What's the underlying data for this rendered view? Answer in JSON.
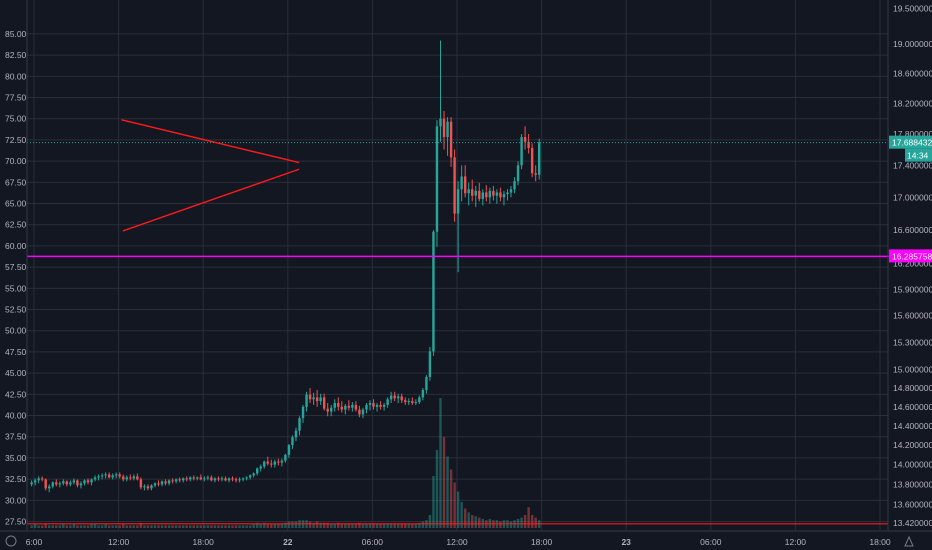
{
  "chart_data": {
    "type": "candlestick",
    "title": "",
    "colors": {
      "background": "#131722",
      "grid": "#2a2e39",
      "up": "#26a69a",
      "down": "#ef5350",
      "text": "#b2b5be",
      "pattern_line": "#ff1a1a",
      "horizontal_line": "#ff00ff",
      "current_price_label_bg": "#26a69a"
    },
    "left_axis": {
      "label": "",
      "range": [
        26.5,
        89.0
      ],
      "ticks": [
        "85.00",
        "82.50",
        "80.00",
        "77.50",
        "75.00",
        "72.50",
        "70.00",
        "67.50",
        "65.00",
        "62.50",
        "60.00",
        "57.50",
        "55.00",
        "52.50",
        "50.00",
        "47.50",
        "45.00",
        "42.50",
        "40.00",
        "37.50",
        "35.00",
        "32.50",
        "30.00",
        "27.50"
      ]
    },
    "right_axis": {
      "label": "",
      "scale": "log",
      "range": [
        13.35,
        19.62
      ],
      "ticks": [
        "19.500000",
        "19.000000",
        "18.600000",
        "18.200000",
        "17.800000",
        "17.400000",
        "17.000000",
        "16.600000",
        "16.200000",
        "15.900000",
        "15.600000",
        "15.300000",
        "15.000000",
        "14.800000",
        "14.600000",
        "14.400000",
        "14.200000",
        "14.000000",
        "13.800000",
        "13.600000",
        "13.420000"
      ]
    },
    "x_axis": {
      "label": "",
      "ticks": [
        "6:00",
        "12:00",
        "18:00",
        "22",
        "06:00",
        "12:00",
        "18:00",
        "23",
        "06:00",
        "12:00",
        "18:00"
      ]
    },
    "price_labels": {
      "current_price": "17.688432",
      "countdown": "14:34",
      "horizontal_line_price": "16.285758"
    },
    "annotations": {
      "horizontal_line_level": 16.285758,
      "triangle": {
        "upper_start": [
          12.2,
          17.985
        ],
        "upper_end": [
          24.8,
          17.434
        ],
        "lower_start": [
          12.3,
          16.59
        ],
        "lower_end": [
          24.8,
          17.35
        ]
      }
    },
    "series": [
      {
        "x_start": 5.83,
        "x_step": 0.25,
        "candles": [
          [
            13.8,
            13.84,
            13.78,
            13.82
          ],
          [
            13.82,
            13.86,
            13.79,
            13.84
          ],
          [
            13.84,
            13.88,
            13.81,
            13.86
          ],
          [
            13.86,
            13.88,
            13.83,
            13.85
          ],
          [
            13.85,
            13.86,
            13.74,
            13.76
          ],
          [
            13.76,
            13.8,
            13.72,
            13.78
          ],
          [
            13.78,
            13.83,
            13.76,
            13.82
          ],
          [
            13.82,
            13.85,
            13.78,
            13.8
          ],
          [
            13.8,
            13.83,
            13.77,
            13.81
          ],
          [
            13.81,
            13.85,
            13.79,
            13.83
          ],
          [
            13.83,
            13.84,
            13.78,
            13.8
          ],
          [
            13.8,
            13.84,
            13.78,
            13.82
          ],
          [
            13.82,
            13.86,
            13.8,
            13.84
          ],
          [
            13.84,
            13.85,
            13.77,
            13.79
          ],
          [
            13.79,
            13.83,
            13.76,
            13.81
          ],
          [
            13.81,
            13.85,
            13.79,
            13.84
          ],
          [
            13.84,
            13.86,
            13.8,
            13.82
          ],
          [
            13.82,
            13.86,
            13.79,
            13.85
          ],
          [
            13.85,
            13.89,
            13.83,
            13.87
          ],
          [
            13.87,
            13.9,
            13.84,
            13.88
          ],
          [
            13.88,
            13.91,
            13.85,
            13.89
          ],
          [
            13.89,
            13.92,
            13.86,
            13.9
          ],
          [
            13.9,
            13.92,
            13.86,
            13.87
          ],
          [
            13.87,
            13.91,
            13.85,
            13.89
          ],
          [
            13.89,
            13.92,
            13.86,
            13.9
          ],
          [
            13.9,
            13.92,
            13.86,
            13.88
          ],
          [
            13.88,
            13.9,
            13.83,
            13.85
          ],
          [
            13.85,
            13.89,
            13.83,
            13.87
          ],
          [
            13.87,
            13.9,
            13.84,
            13.86
          ],
          [
            13.86,
            13.9,
            13.84,
            13.88
          ],
          [
            13.88,
            13.91,
            13.84,
            13.85
          ],
          [
            13.85,
            13.87,
            13.75,
            13.77
          ],
          [
            13.77,
            13.8,
            13.74,
            13.78
          ],
          [
            13.78,
            13.8,
            13.74,
            13.76
          ],
          [
            13.76,
            13.8,
            13.74,
            13.79
          ],
          [
            13.79,
            13.82,
            13.77,
            13.81
          ],
          [
            13.81,
            13.84,
            13.78,
            13.8
          ],
          [
            13.8,
            13.84,
            13.78,
            13.83
          ],
          [
            13.83,
            13.85,
            13.79,
            13.81
          ],
          [
            13.81,
            13.85,
            13.79,
            13.84
          ],
          [
            13.84,
            13.86,
            13.81,
            13.83
          ],
          [
            13.83,
            13.86,
            13.81,
            13.85
          ],
          [
            13.85,
            13.87,
            13.82,
            13.84
          ],
          [
            13.84,
            13.87,
            13.82,
            13.86
          ],
          [
            13.86,
            13.88,
            13.83,
            13.85
          ],
          [
            13.85,
            13.88,
            13.83,
            13.87
          ],
          [
            13.87,
            13.89,
            13.84,
            13.86
          ],
          [
            13.86,
            13.88,
            13.84,
            13.87
          ],
          [
            13.87,
            13.9,
            13.84,
            13.85
          ],
          [
            13.85,
            13.88,
            13.83,
            13.86
          ],
          [
            13.86,
            13.89,
            13.84,
            13.87
          ],
          [
            13.87,
            13.89,
            13.83,
            13.84
          ],
          [
            13.84,
            13.87,
            13.82,
            13.86
          ],
          [
            13.86,
            13.88,
            13.83,
            13.85
          ],
          [
            13.85,
            13.88,
            13.83,
            13.86
          ],
          [
            13.86,
            13.88,
            13.83,
            13.84
          ],
          [
            13.84,
            13.87,
            13.82,
            13.86
          ],
          [
            13.86,
            13.88,
            13.83,
            13.85
          ],
          [
            13.85,
            13.87,
            13.82,
            13.84
          ],
          [
            13.84,
            13.87,
            13.82,
            13.85
          ],
          [
            13.85,
            13.87,
            13.83,
            13.86
          ],
          [
            13.86,
            13.88,
            13.84,
            13.87
          ],
          [
            13.87,
            13.9,
            13.85,
            13.89
          ],
          [
            13.89,
            13.92,
            13.87,
            13.91
          ],
          [
            13.91,
            13.97,
            13.89,
            13.96
          ],
          [
            13.96,
            14.0,
            13.93,
            13.98
          ],
          [
            13.98,
            14.04,
            13.96,
            14.03
          ],
          [
            14.03,
            14.08,
            13.99,
            14.01
          ],
          [
            14.01,
            14.05,
            13.97,
            14.0
          ],
          [
            14.0,
            14.05,
            13.97,
            14.03
          ],
          [
            14.03,
            14.06,
            13.99,
            14.02
          ],
          [
            14.02,
            14.06,
            13.98,
            14.04
          ],
          [
            14.04,
            14.11,
            14.02,
            14.1
          ],
          [
            14.1,
            14.21,
            14.07,
            14.2
          ],
          [
            14.2,
            14.3,
            14.16,
            14.28
          ],
          [
            14.28,
            14.38,
            14.24,
            14.35
          ],
          [
            14.35,
            14.5,
            14.3,
            14.48
          ],
          [
            14.48,
            14.62,
            14.43,
            14.6
          ],
          [
            14.6,
            14.76,
            14.55,
            14.73
          ],
          [
            14.73,
            14.8,
            14.64,
            14.68
          ],
          [
            14.68,
            14.75,
            14.62,
            14.7
          ],
          [
            14.7,
            14.78,
            14.6,
            14.66
          ],
          [
            14.66,
            14.74,
            14.62,
            14.7
          ],
          [
            14.7,
            14.74,
            14.56,
            14.58
          ],
          [
            14.58,
            14.64,
            14.5,
            14.55
          ],
          [
            14.55,
            14.62,
            14.5,
            14.59
          ],
          [
            14.59,
            14.68,
            14.55,
            14.64
          ],
          [
            14.64,
            14.7,
            14.56,
            14.6
          ],
          [
            14.6,
            14.66,
            14.54,
            14.57
          ],
          [
            14.57,
            14.63,
            14.52,
            14.61
          ],
          [
            14.61,
            14.67,
            14.56,
            14.59
          ],
          [
            14.59,
            14.65,
            14.55,
            14.62
          ],
          [
            14.62,
            14.66,
            14.55,
            14.57
          ],
          [
            14.57,
            14.61,
            14.49,
            14.52
          ],
          [
            14.52,
            14.59,
            14.48,
            14.57
          ],
          [
            14.57,
            14.64,
            14.53,
            14.62
          ],
          [
            14.62,
            14.67,
            14.56,
            14.64
          ],
          [
            14.64,
            14.68,
            14.57,
            14.6
          ],
          [
            14.6,
            14.64,
            14.55,
            14.62
          ],
          [
            14.62,
            14.66,
            14.57,
            14.6
          ],
          [
            14.6,
            14.64,
            14.56,
            14.62
          ],
          [
            14.62,
            14.7,
            14.59,
            14.68
          ],
          [
            14.68,
            14.76,
            14.64,
            14.72
          ],
          [
            14.72,
            14.76,
            14.66,
            14.69
          ],
          [
            14.69,
            14.74,
            14.64,
            14.71
          ],
          [
            14.71,
            14.74,
            14.64,
            14.67
          ],
          [
            14.67,
            14.7,
            14.62,
            14.65
          ],
          [
            14.65,
            14.69,
            14.62,
            14.66
          ],
          [
            14.66,
            14.7,
            14.62,
            14.64
          ],
          [
            14.64,
            14.68,
            14.62,
            14.65
          ],
          [
            14.65,
            14.72,
            14.63,
            14.7
          ],
          [
            14.7,
            14.8,
            14.67,
            14.78
          ],
          [
            14.78,
            14.94,
            14.74,
            14.92
          ],
          [
            14.92,
            15.25,
            14.88,
            15.2
          ],
          [
            15.2,
            16.6,
            15.15,
            16.58
          ],
          [
            16.58,
            17.98,
            16.4,
            17.9
          ],
          [
            17.9,
            19.05,
            17.7,
            18.0
          ],
          [
            18.0,
            18.1,
            17.6,
            17.76
          ],
          [
            17.76,
            18.02,
            17.52,
            17.96
          ],
          [
            17.96,
            18.02,
            17.38,
            17.5
          ],
          [
            17.5,
            17.6,
            16.7,
            16.8
          ],
          [
            16.8,
            17.2,
            16.1,
            17.1
          ],
          [
            17.1,
            17.4,
            16.95,
            17.26
          ],
          [
            17.26,
            17.4,
            17.0,
            17.05
          ],
          [
            17.05,
            17.18,
            16.9,
            17.1
          ],
          [
            17.1,
            17.22,
            16.95,
            17.02
          ],
          [
            17.02,
            17.14,
            16.88,
            17.08
          ],
          [
            17.08,
            17.18,
            16.95,
            16.98
          ],
          [
            16.98,
            17.1,
            16.9,
            17.06
          ],
          [
            17.06,
            17.15,
            16.95,
            17.0
          ],
          [
            17.0,
            17.12,
            16.92,
            17.08
          ],
          [
            17.08,
            17.14,
            16.96,
            17.02
          ],
          [
            17.02,
            17.1,
            16.92,
            17.06
          ],
          [
            17.06,
            17.12,
            16.95,
            17.0
          ],
          [
            17.0,
            17.08,
            16.9,
            17.04
          ],
          [
            17.04,
            17.1,
            16.96,
            17.06
          ],
          [
            17.06,
            17.14,
            17.0,
            17.1
          ],
          [
            17.1,
            17.25,
            17.05,
            17.2
          ],
          [
            17.2,
            17.45,
            17.15,
            17.4
          ],
          [
            17.4,
            17.8,
            17.35,
            17.76
          ],
          [
            17.76,
            17.9,
            17.6,
            17.7
          ],
          [
            17.7,
            17.8,
            17.55,
            17.62
          ],
          [
            17.62,
            17.68,
            17.25,
            17.3
          ],
          [
            17.3,
            17.4,
            17.2,
            17.28
          ],
          [
            17.28,
            17.74,
            17.22,
            17.69
          ]
        ]
      }
    ],
    "volume": {
      "label": "",
      "values": [
        0.02,
        0.03,
        0.02,
        0.02,
        0.03,
        0.02,
        0.02,
        0.02,
        0.02,
        0.03,
        0.02,
        0.02,
        0.03,
        0.02,
        0.02,
        0.02,
        0.02,
        0.03,
        0.03,
        0.02,
        0.02,
        0.03,
        0.02,
        0.02,
        0.02,
        0.02,
        0.03,
        0.02,
        0.02,
        0.02,
        0.02,
        0.04,
        0.02,
        0.02,
        0.02,
        0.02,
        0.02,
        0.02,
        0.02,
        0.02,
        0.02,
        0.02,
        0.02,
        0.02,
        0.02,
        0.02,
        0.02,
        0.02,
        0.02,
        0.02,
        0.02,
        0.02,
        0.02,
        0.02,
        0.02,
        0.02,
        0.02,
        0.02,
        0.02,
        0.02,
        0.02,
        0.02,
        0.02,
        0.03,
        0.04,
        0.03,
        0.04,
        0.03,
        0.03,
        0.03,
        0.03,
        0.03,
        0.04,
        0.05,
        0.05,
        0.05,
        0.06,
        0.06,
        0.06,
        0.05,
        0.04,
        0.05,
        0.04,
        0.04,
        0.04,
        0.03,
        0.03,
        0.04,
        0.03,
        0.03,
        0.03,
        0.03,
        0.03,
        0.04,
        0.03,
        0.03,
        0.03,
        0.03,
        0.03,
        0.03,
        0.03,
        0.03,
        0.03,
        0.03,
        0.03,
        0.03,
        0.03,
        0.03,
        0.03,
        0.03,
        0.04,
        0.05,
        0.06,
        0.1,
        0.4,
        0.6,
        1.0,
        0.7,
        0.55,
        0.45,
        0.35,
        0.28,
        0.2,
        0.15,
        0.12,
        0.1,
        0.09,
        0.08,
        0.07,
        0.06,
        0.07,
        0.06,
        0.06,
        0.05,
        0.06,
        0.06,
        0.05,
        0.06,
        0.07,
        0.08,
        0.1,
        0.16,
        0.1,
        0.08,
        0.06,
        0.05,
        0.04
      ]
    }
  }
}
